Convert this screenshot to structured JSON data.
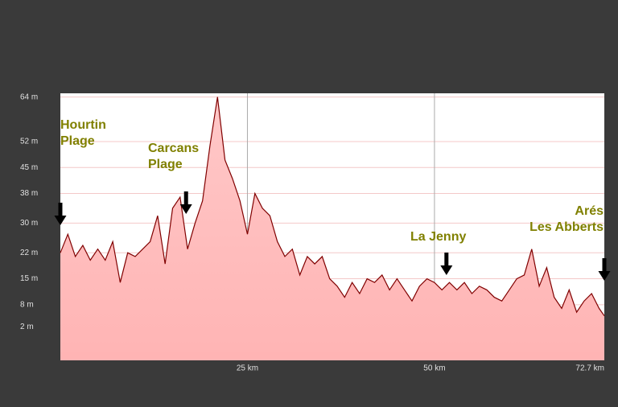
{
  "chart_data": {
    "type": "area",
    "x": [
      0,
      1,
      2,
      3,
      4,
      5,
      6,
      7,
      8,
      9,
      10,
      11,
      12,
      13,
      14,
      15,
      16,
      17,
      18,
      19,
      20,
      21,
      22,
      23,
      24,
      25,
      26,
      27,
      28,
      29,
      30,
      31,
      32,
      33,
      34,
      35,
      36,
      37,
      38,
      39,
      40,
      41,
      42,
      43,
      44,
      45,
      46,
      47,
      48,
      49,
      50,
      51,
      52,
      53,
      54,
      55,
      56,
      57,
      58,
      59,
      60,
      61,
      62,
      63,
      64,
      65,
      66,
      67,
      68,
      69,
      70,
      71,
      72,
      72.7
    ],
    "values": [
      22,
      27,
      21,
      24,
      20,
      23,
      20,
      25,
      14,
      22,
      21,
      23,
      25,
      32,
      19,
      34,
      37,
      23,
      30,
      36,
      51,
      64,
      47,
      42,
      36,
      27,
      38,
      34,
      32,
      25,
      21,
      23,
      16,
      21,
      19,
      21,
      15,
      13,
      10,
      14,
      11,
      15,
      14,
      16,
      12,
      15,
      12,
      9,
      13,
      15,
      14,
      12,
      14,
      12,
      14,
      11,
      13,
      12,
      10,
      9,
      12,
      15,
      16,
      23,
      13,
      18,
      10,
      7,
      12,
      6,
      9,
      11,
      7,
      5
    ],
    "color": "#800000",
    "xlim": [
      0,
      72.7
    ],
    "ylim": [
      -7,
      65
    ],
    "xticks": [
      {
        "value": 25,
        "label": "25 km"
      },
      {
        "value": 50,
        "label": "50 km"
      },
      {
        "value": 72.7,
        "label": "72.7 km"
      }
    ],
    "yticks": [
      {
        "value": 64,
        "label": "64 m"
      },
      {
        "value": 52,
        "label": "52 m"
      },
      {
        "value": 45,
        "label": "45 m"
      },
      {
        "value": 38,
        "label": "38 m"
      },
      {
        "value": 30,
        "label": "30 m"
      },
      {
        "value": 22,
        "label": "22 m"
      },
      {
        "value": 15,
        "label": "15 m"
      },
      {
        "value": 8,
        "label": "8 m"
      },
      {
        "value": 2,
        "label": "2 m"
      }
    ],
    "grid": true,
    "annotations": [
      {
        "lines": [
          "Hourtin",
          "Plage"
        ],
        "x": 0
      },
      {
        "lines": [
          "Carcans",
          "Plage"
        ],
        "x": 16.8
      },
      {
        "lines": [
          "La Jenny"
        ],
        "x": 51.6
      },
      {
        "lines": [
          "Arés",
          "Les Abberts"
        ],
        "x": 72.7
      }
    ]
  }
}
